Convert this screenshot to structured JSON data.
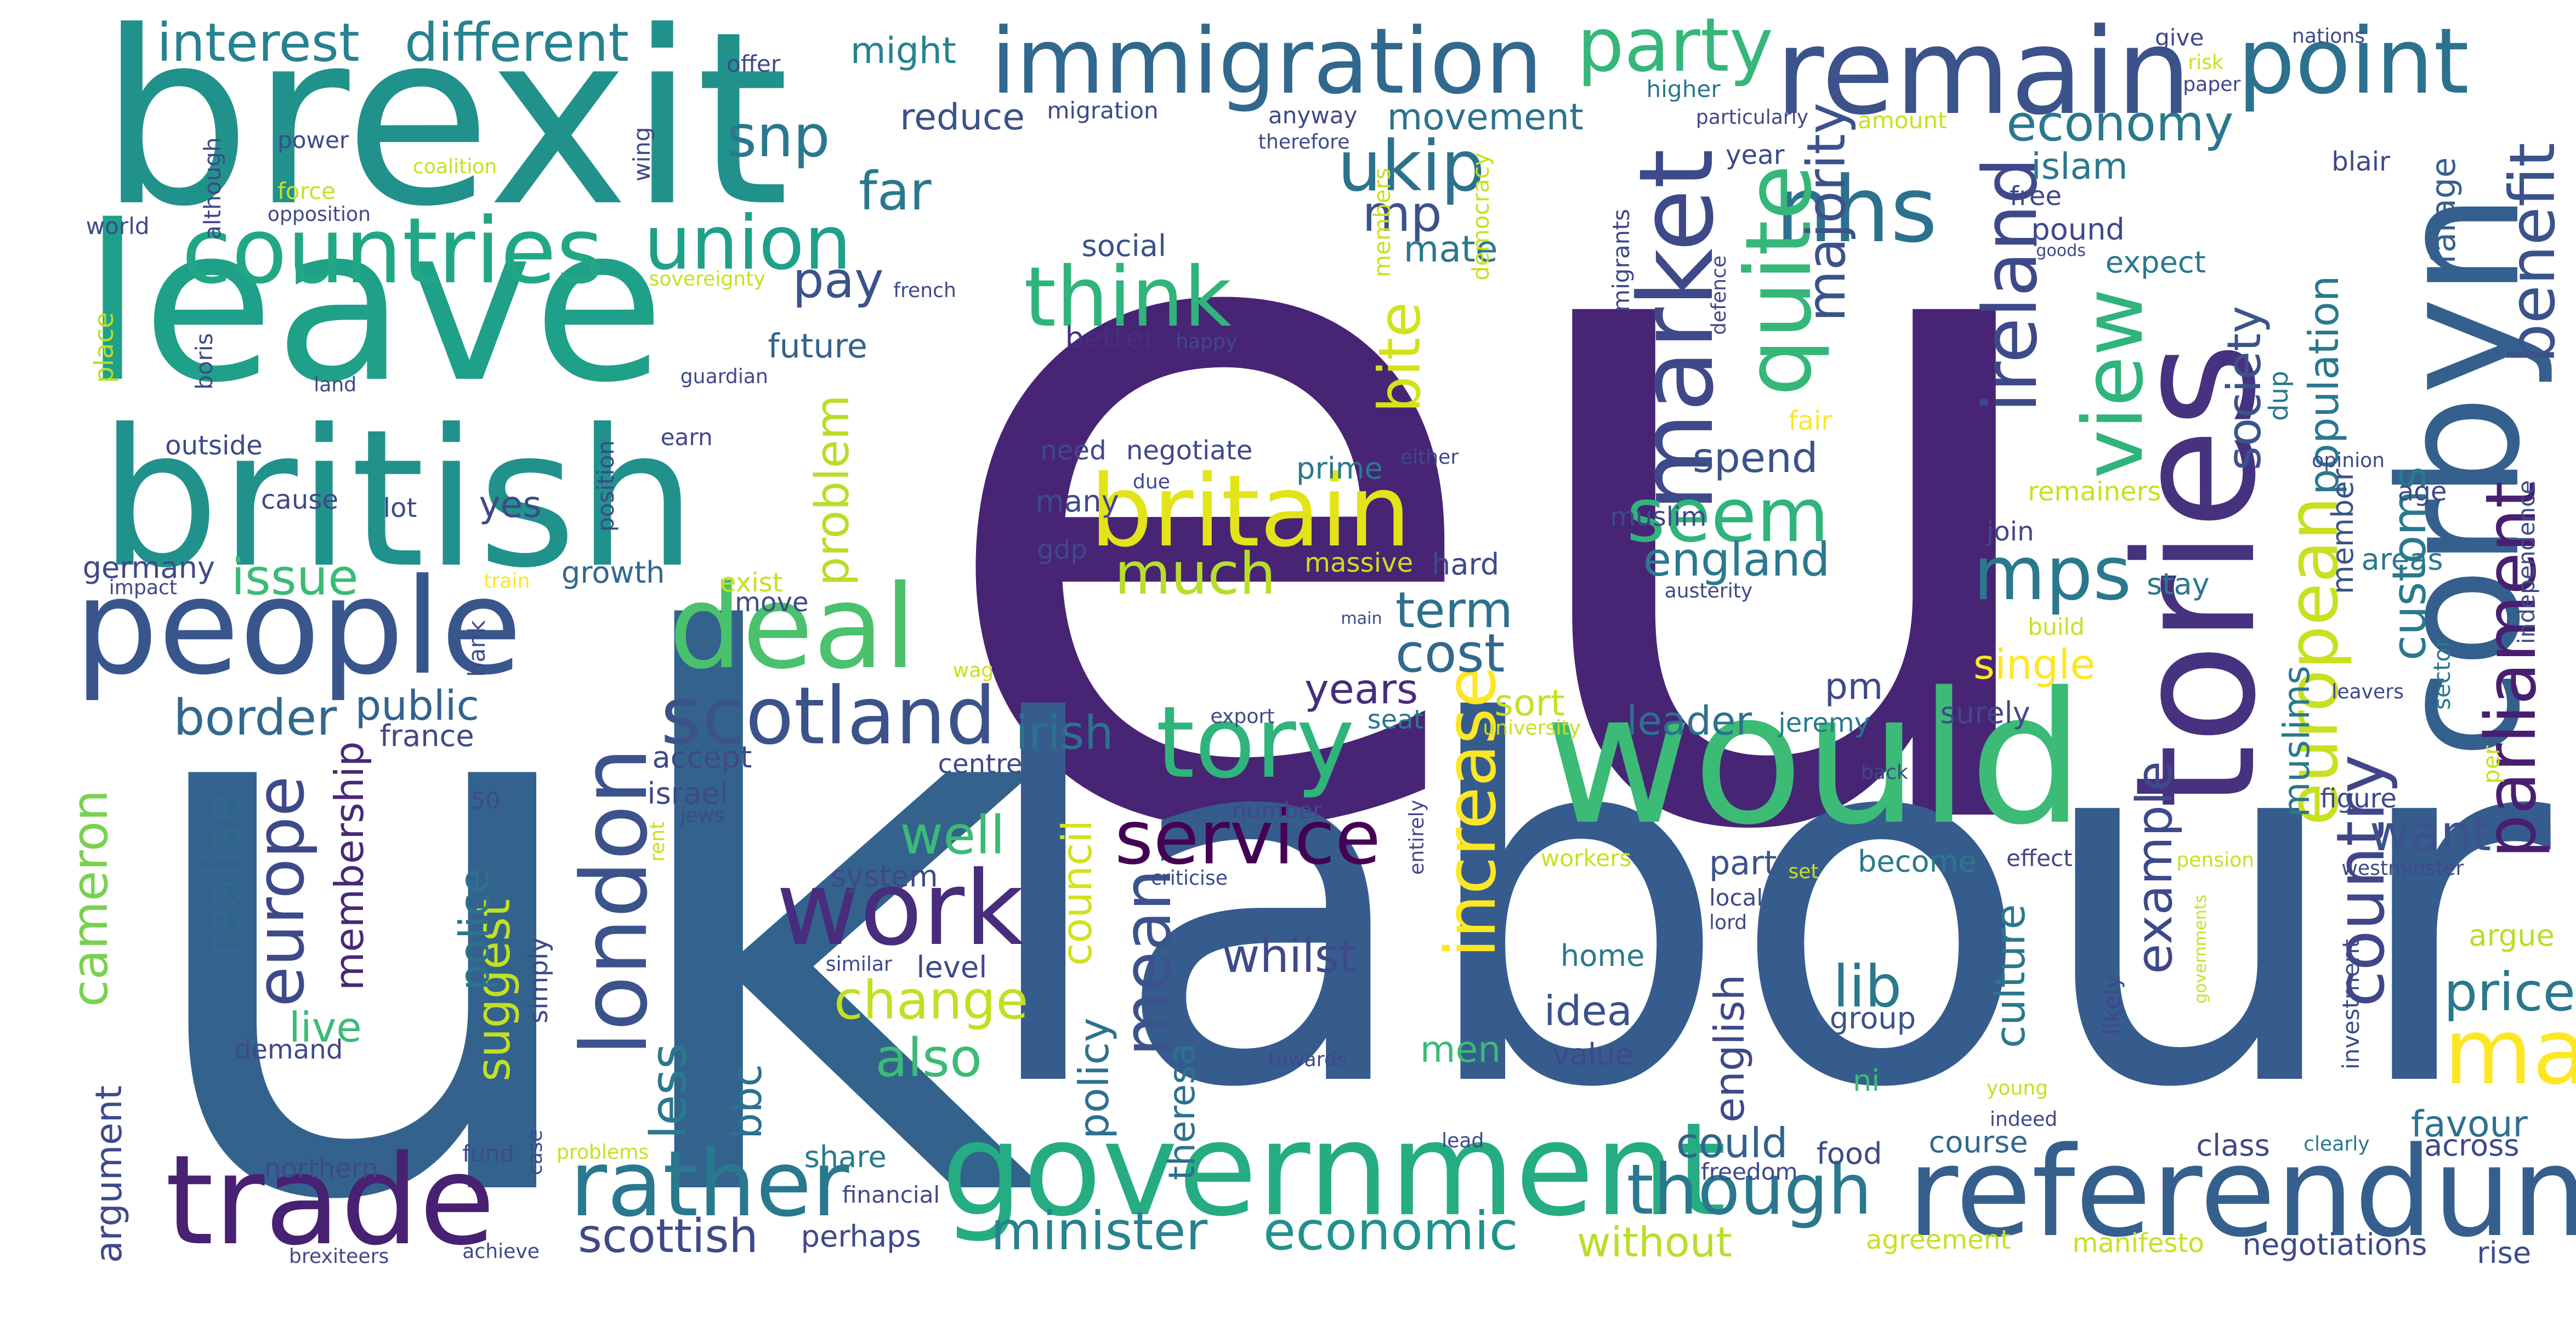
{
  "wordcloud": {
    "palette": "viridis",
    "background": "#ffffff",
    "words": [
      {
        "text": "eu",
        "color": "#482475"
      },
      {
        "text": "uk",
        "color": "#33638d"
      },
      {
        "text": "labour",
        "color": "#365c8d"
      },
      {
        "text": "brexit",
        "color": "#21918c"
      },
      {
        "text": "leave",
        "color": "#1fa088"
      },
      {
        "text": "british",
        "color": "#21918c"
      },
      {
        "text": "would",
        "color": "#3bbb75"
      },
      {
        "text": "tories",
        "color": "#46327e"
      },
      {
        "text": "corbyn",
        "color": "#355f8d"
      },
      {
        "text": "remain",
        "color": "#3b528b"
      },
      {
        "text": "people",
        "color": "#39568c"
      },
      {
        "text": "government",
        "color": "#25ac82"
      },
      {
        "text": "referendum",
        "color": "#355f8d"
      },
      {
        "text": "trade",
        "color": "#482173"
      },
      {
        "text": "immigration",
        "color": "#31688e"
      },
      {
        "text": "britain",
        "color": "#e2e418"
      },
      {
        "text": "countries",
        "color": "#22a785"
      },
      {
        "text": "deal",
        "color": "#4ac16d"
      },
      {
        "text": "tory",
        "color": "#2fb47c"
      },
      {
        "text": "work",
        "color": "#472d7b"
      },
      {
        "text": "point",
        "color": "#2c718e"
      },
      {
        "text": "market",
        "color": "#3e4989"
      },
      {
        "text": "rather",
        "color": "#2a788e"
      },
      {
        "text": "scotland",
        "color": "#3b528b"
      },
      {
        "text": "london",
        "color": "#3b528b"
      },
      {
        "text": "think",
        "color": "#2fb47c"
      },
      {
        "text": "nhs",
        "color": "#2c728e"
      },
      {
        "text": "quite",
        "color": "#35b779"
      },
      {
        "text": "service",
        "color": "#440154"
      },
      {
        "text": "ukip",
        "color": "#2c728e"
      },
      {
        "text": "union",
        "color": "#1fa088"
      },
      {
        "text": "party",
        "color": "#35b779"
      },
      {
        "text": "ireland",
        "color": "#3e4989"
      },
      {
        "text": "view",
        "color": "#2fb47c"
      },
      {
        "text": "seem",
        "color": "#2fb47c"
      },
      {
        "text": "mps",
        "color": "#2a788e"
      },
      {
        "text": "european",
        "color": "#c8e020"
      },
      {
        "text": "parliament",
        "color": "#481f70"
      },
      {
        "text": "benefit",
        "color": "#3b528b"
      },
      {
        "text": "country",
        "color": "#404688"
      },
      {
        "text": "may",
        "color": "#fde725"
      },
      {
        "text": "increase",
        "color": "#fde725"
      },
      {
        "text": "minister",
        "color": "#26828e"
      },
      {
        "text": "economic",
        "color": "#21918c"
      },
      {
        "text": "though",
        "color": "#2a788e"
      },
      {
        "text": "europe",
        "color": "#3e4989"
      },
      {
        "text": "mean",
        "color": "#3b528b"
      },
      {
        "text": "interest",
        "color": "#26828e"
      },
      {
        "text": "different",
        "color": "#26828e"
      },
      {
        "text": "snp",
        "color": "#2a788e"
      },
      {
        "text": "much",
        "color": "#b8de29"
      },
      {
        "text": "bite",
        "color": "#d2e21b"
      },
      {
        "text": "majority",
        "color": "#3b528b"
      },
      {
        "text": "economy",
        "color": "#2a788e"
      },
      {
        "text": "border",
        "color": "#31688e"
      },
      {
        "text": "issue",
        "color": "#3bbb75"
      },
      {
        "text": "cost",
        "color": "#31688e"
      },
      {
        "text": "england",
        "color": "#2a788e"
      },
      {
        "text": "society",
        "color": "#3b528b"
      },
      {
        "text": "realise",
        "color": "#31688e"
      },
      {
        "text": "change",
        "color": "#c2df23"
      },
      {
        "text": "also",
        "color": "#3bbb75"
      },
      {
        "text": "well",
        "color": "#3bbb75"
      },
      {
        "text": "lib",
        "color": "#2a788e"
      },
      {
        "text": "price",
        "color": "#2a788e"
      },
      {
        "text": "example",
        "color": "#3e4989"
      },
      {
        "text": "cameron",
        "color": "#7ad151"
      },
      {
        "text": "scottish",
        "color": "#3e4989"
      },
      {
        "text": "term",
        "color": "#2c718e"
      },
      {
        "text": "pay",
        "color": "#3b528b"
      },
      {
        "text": "far",
        "color": "#2a788e"
      },
      {
        "text": "mp",
        "color": "#3b528b"
      },
      {
        "text": "customs",
        "color": "#2a788e"
      },
      {
        "text": "want",
        "color": "#3b528b"
      },
      {
        "text": "whilst",
        "color": "#3e4989"
      },
      {
        "text": "problem",
        "color": "#b8de29"
      },
      {
        "text": "less",
        "color": "#2a788e"
      },
      {
        "text": "irish",
        "color": "#2c728e"
      },
      {
        "text": "leader",
        "color": "#2c718e"
      },
      {
        "text": "years",
        "color": "#472d7b"
      },
      {
        "text": "membership",
        "color": "#482878"
      },
      {
        "text": "suggest",
        "color": "#c2df23"
      },
      {
        "text": "public",
        "color": "#33638d"
      },
      {
        "text": "population",
        "color": "#2a788e"
      },
      {
        "text": "single",
        "color": "#fde725"
      },
      {
        "text": "spend",
        "color": "#3b528b"
      },
      {
        "text": "police",
        "color": "#2c718e"
      },
      {
        "text": "culture",
        "color": "#2a788e"
      },
      {
        "text": "muslims",
        "color": "#2a788e"
      },
      {
        "text": "could",
        "color": "#33638d"
      },
      {
        "text": "idea",
        "color": "#3b528b"
      },
      {
        "text": "english",
        "color": "#3e4989"
      },
      {
        "text": "council",
        "color": "#d2e21b"
      },
      {
        "text": "policy",
        "color": "#2c728e"
      },
      {
        "text": "live",
        "color": "#3bbb75"
      },
      {
        "text": "bbc",
        "color": "#2c718e"
      },
      {
        "text": "without",
        "color": "#b8de29"
      },
      {
        "text": "favour",
        "color": "#2c728e"
      },
      {
        "text": "movement",
        "color": "#2c728e"
      },
      {
        "text": "reduce",
        "color": "#3b528b"
      },
      {
        "text": "might",
        "color": "#26828e"
      },
      {
        "text": "theresa",
        "color": "#2c718e"
      },
      {
        "text": "men",
        "color": "#3bbb75"
      },
      {
        "text": "part",
        "color": "#3b528b"
      },
      {
        "text": "become",
        "color": "#2a788e"
      },
      {
        "text": "yes",
        "color": "#3e4989"
      },
      {
        "text": "islam",
        "color": "#2a788e"
      },
      {
        "text": "farage",
        "color": "#355f8d"
      },
      {
        "text": "argument",
        "color": "#3e4989"
      },
      {
        "text": "sort",
        "color": "#c8e020"
      },
      {
        "text": "pm",
        "color": "#3e4989"
      },
      {
        "text": "mate",
        "color": "#2a788e"
      },
      {
        "text": "future",
        "color": "#33638d"
      },
      {
        "text": "social",
        "color": "#3b528b"
      },
      {
        "text": "better",
        "color": "#472d7b"
      },
      {
        "text": "pound",
        "color": "#3e4989"
      },
      {
        "text": "expect",
        "color": "#2a788e"
      },
      {
        "text": "member",
        "color": "#3b528b"
      },
      {
        "text": "areas",
        "color": "#2a788e"
      },
      {
        "text": "stay",
        "color": "#2a788e"
      },
      {
        "text": "growth",
        "color": "#31688e"
      },
      {
        "text": "germany",
        "color": "#3e4989"
      },
      {
        "text": "france",
        "color": "#3e4989"
      },
      {
        "text": "accept",
        "color": "#3e4989"
      },
      {
        "text": "israel",
        "color": "#3e4989"
      },
      {
        "text": "centre",
        "color": "#3e4989"
      },
      {
        "text": "system",
        "color": "#3e4989"
      },
      {
        "text": "level",
        "color": "#3e4989"
      },
      {
        "text": "perhaps",
        "color": "#3e4989"
      },
      {
        "text": "share",
        "color": "#2a788e"
      },
      {
        "text": "course",
        "color": "#31688e"
      },
      {
        "text": "food",
        "color": "#3e4989"
      },
      {
        "text": "class",
        "color": "#3e4989"
      },
      {
        "text": "negotiations",
        "color": "#3e4989"
      },
      {
        "text": "rise",
        "color": "#3e4989"
      },
      {
        "text": "across",
        "color": "#3e4989"
      },
      {
        "text": "argue",
        "color": "#b8de29"
      },
      {
        "text": "group",
        "color": "#3b528b"
      },
      {
        "text": "value",
        "color": "#3e4989"
      },
      {
        "text": "home",
        "color": "#2a788e"
      },
      {
        "text": "ni",
        "color": "#3bbb75"
      },
      {
        "text": "surely",
        "color": "#3e4989"
      },
      {
        "text": "jeremy",
        "color": "#2a788e"
      },
      {
        "text": "seat",
        "color": "#2a788e"
      },
      {
        "text": "hard",
        "color": "#3e4989"
      },
      {
        "text": "massive",
        "color": "#c8e020"
      },
      {
        "text": "prime",
        "color": "#2a788e"
      },
      {
        "text": "need",
        "color": "#3e4989"
      },
      {
        "text": "negotiate",
        "color": "#3e4989"
      },
      {
        "text": "many",
        "color": "#3e4989"
      },
      {
        "text": "gdp",
        "color": "#3e4989"
      },
      {
        "text": "muslim",
        "color": "#3e4989"
      },
      {
        "text": "fair",
        "color": "#fde725"
      },
      {
        "text": "year",
        "color": "#3e4989"
      },
      {
        "text": "free",
        "color": "#3e4989"
      },
      {
        "text": "join",
        "color": "#3e4989"
      },
      {
        "text": "remainers",
        "color": "#c8e020"
      },
      {
        "text": "age",
        "color": "#3e4989"
      },
      {
        "text": "dup",
        "color": "#2a788e"
      },
      {
        "text": "blair",
        "color": "#3e4989"
      },
      {
        "text": "higher",
        "color": "#2a788e"
      },
      {
        "text": "amount",
        "color": "#c8e020"
      },
      {
        "text": "give",
        "color": "#3e4989"
      },
      {
        "text": "nations",
        "color": "#3e4989"
      },
      {
        "text": "paper",
        "color": "#3e4989"
      },
      {
        "text": "risk",
        "color": "#c8e020"
      },
      {
        "text": "offer",
        "color": "#3e4989"
      },
      {
        "text": "migration",
        "color": "#3e4989"
      },
      {
        "text": "anyway",
        "color": "#3e4989"
      },
      {
        "text": "therefore",
        "color": "#3e4989"
      },
      {
        "text": "particularly",
        "color": "#3e4989"
      },
      {
        "text": "power",
        "color": "#3e4989"
      },
      {
        "text": "although",
        "color": "#3e4989"
      },
      {
        "text": "wing",
        "color": "#3e4989"
      },
      {
        "text": "coalition",
        "color": "#c8e020"
      },
      {
        "text": "force",
        "color": "#c8e020"
      },
      {
        "text": "world",
        "color": "#3e4989"
      },
      {
        "text": "opposition",
        "color": "#3e4989"
      },
      {
        "text": "sovereignty",
        "color": "#c8e020"
      },
      {
        "text": "place",
        "color": "#b8de29"
      },
      {
        "text": "boris",
        "color": "#3e4989"
      },
      {
        "text": "land",
        "color": "#3e4989"
      },
      {
        "text": "guardian",
        "color": "#3e4989"
      },
      {
        "text": "french",
        "color": "#3e4989"
      },
      {
        "text": "happy",
        "color": "#3e4989"
      },
      {
        "text": "outside",
        "color": "#3e4989"
      },
      {
        "text": "earn",
        "color": "#3e4989"
      },
      {
        "text": "cause",
        "color": "#3e4989"
      },
      {
        "text": "lot",
        "color": "#3e4989"
      },
      {
        "text": "position",
        "color": "#3e4989"
      },
      {
        "text": "impact",
        "color": "#3e4989"
      },
      {
        "text": "train",
        "color": "#fde725"
      },
      {
        "text": "exist",
        "color": "#c8e020"
      },
      {
        "text": "move",
        "color": "#3e4989"
      },
      {
        "text": "bank",
        "color": "#3e4989"
      },
      {
        "text": "wag",
        "color": "#c8e020"
      },
      {
        "text": "export",
        "color": "#3e4989"
      },
      {
        "text": "university",
        "color": "#c8e020"
      },
      {
        "text": "jews",
        "color": "#3e4989"
      },
      {
        "text": "rent",
        "color": "#c8e020"
      },
      {
        "text": "number",
        "color": "#3e4989"
      },
      {
        "text": "50",
        "color": "#3e4989"
      },
      {
        "text": "criticise",
        "color": "#3e4989"
      },
      {
        "text": "entirely",
        "color": "#3e4989"
      },
      {
        "text": "back",
        "color": "#3e4989"
      },
      {
        "text": "effect",
        "color": "#3e4989"
      },
      {
        "text": "workers",
        "color": "#c8e020"
      },
      {
        "text": "set",
        "color": "#c8e020"
      },
      {
        "text": "local",
        "color": "#3e4989"
      },
      {
        "text": "lord",
        "color": "#3e4989"
      },
      {
        "text": "pension",
        "color": "#c8e020"
      },
      {
        "text": "westminster",
        "color": "#3e4989"
      },
      {
        "text": "figure",
        "color": "#3e4989"
      },
      {
        "text": "per",
        "color": "#c8e020"
      },
      {
        "text": "sector",
        "color": "#2a788e"
      },
      {
        "text": "leavers",
        "color": "#3e4989"
      },
      {
        "text": "independence",
        "color": "#3e4989"
      },
      {
        "text": "investment",
        "color": "#3e4989"
      },
      {
        "text": "likely",
        "color": "#3e4989"
      },
      {
        "text": "governments",
        "color": "#c8e020"
      },
      {
        "text": "young",
        "color": "#c8e020"
      },
      {
        "text": "indeed",
        "color": "#3e4989"
      },
      {
        "text": "clearly",
        "color": "#2a788e"
      },
      {
        "text": "lead",
        "color": "#3e4989"
      },
      {
        "text": "freedom",
        "color": "#3e4989"
      },
      {
        "text": "agreement",
        "color": "#c8e020"
      },
      {
        "text": "manifesto",
        "color": "#c8e020"
      },
      {
        "text": "financial",
        "color": "#3e4989"
      },
      {
        "text": "problems",
        "color": "#c8e020"
      },
      {
        "text": "achieve",
        "color": "#3e4989"
      },
      {
        "text": "brexiteers",
        "color": "#3e4989"
      },
      {
        "text": "case",
        "color": "#3e4989"
      },
      {
        "text": "fund",
        "color": "#3e4989"
      },
      {
        "text": "northern",
        "color": "#3e4989"
      },
      {
        "text": "demand",
        "color": "#3e4989"
      },
      {
        "text": "simply",
        "color": "#3e4989"
      },
      {
        "text": "similar",
        "color": "#3e4989"
      },
      {
        "text": "towards",
        "color": "#3e4989"
      },
      {
        "text": "either",
        "color": "#3e4989"
      },
      {
        "text": "due",
        "color": "#3e4989"
      },
      {
        "text": "defence",
        "color": "#3e4989"
      },
      {
        "text": "migrants",
        "color": "#3e4989"
      },
      {
        "text": "members",
        "color": "#c8e020"
      },
      {
        "text": "democracy",
        "color": "#c8e020"
      },
      {
        "text": "austerity",
        "color": "#3e4989"
      },
      {
        "text": "build",
        "color": "#c8e020"
      },
      {
        "text": "main",
        "color": "#3e4989"
      },
      {
        "text": "goods",
        "color": "#3e4989"
      },
      {
        "text": "opinion",
        "color": "#3e4989"
      }
    ]
  }
}
